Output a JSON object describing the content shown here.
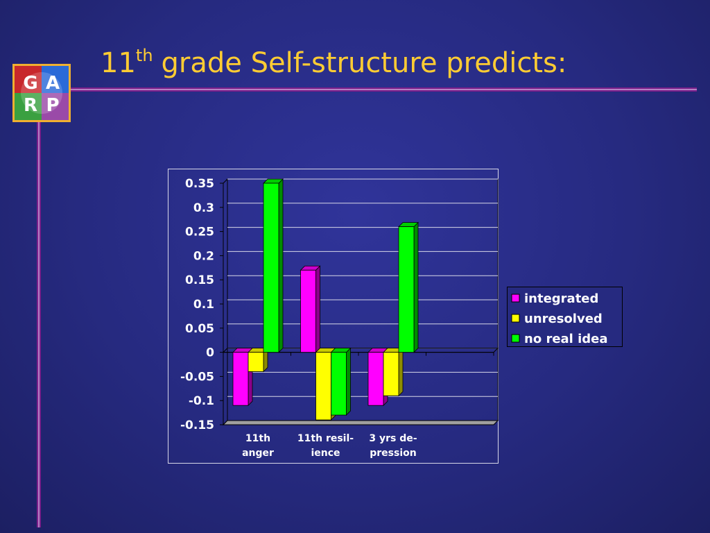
{
  "slide": {
    "title": {
      "main": "11",
      "superscript": "th",
      "rest": "grade Self-structure predicts:"
    },
    "logo": [
      "G",
      "A",
      "R",
      "P"
    ]
  },
  "chart_data": {
    "type": "bar",
    "categories": [
      "11th\nanger",
      "11th resil-\nience",
      "3 yrs de-\npression",
      null
    ],
    "series": [
      {
        "name": "integrated",
        "color": "#ff00ff",
        "values": [
          -0.11,
          0.17,
          -0.11,
          null
        ]
      },
      {
        "name": "unresolved",
        "color": "#ffff00",
        "values": [
          -0.04,
          -0.14,
          -0.09,
          null
        ]
      },
      {
        "name": "no real idea",
        "color": "#00ff00",
        "values": [
          0.35,
          -0.13,
          0.26,
          null
        ]
      }
    ],
    "ylim": [
      -0.15,
      0.35
    ],
    "yticks": [
      -0.15,
      -0.1,
      -0.05,
      0,
      0.05,
      0.1,
      0.15,
      0.2,
      0.25,
      0.3,
      0.35
    ],
    "grid": true,
    "legend": "right"
  }
}
